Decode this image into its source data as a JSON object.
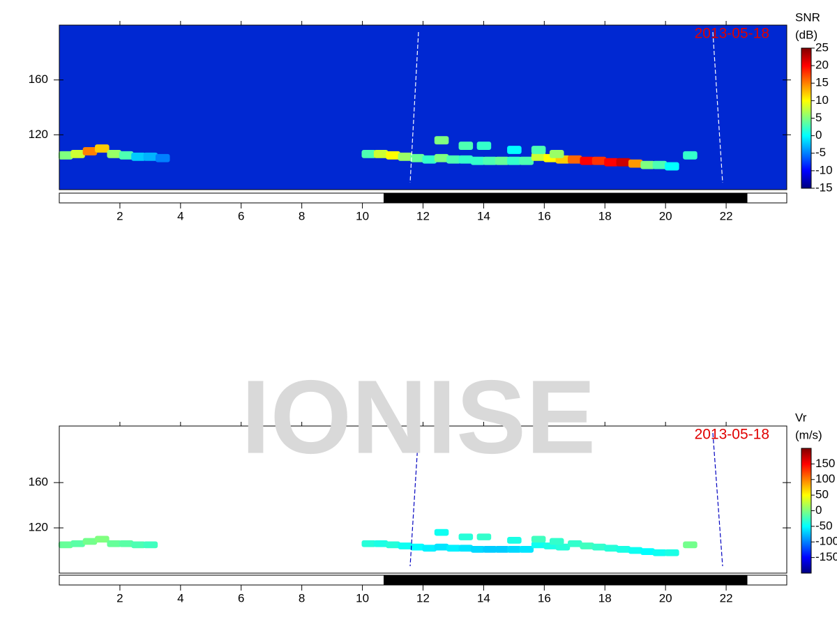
{
  "watermark": "IONISE",
  "chart_data": [
    {
      "type": "heatmap",
      "date_label": "2013-05-18",
      "colorbar_title": "SNR",
      "colorbar_unit": "(dB)",
      "xlim": [
        0,
        24
      ],
      "xticks": [
        2,
        4,
        6,
        8,
        10,
        12,
        14,
        16,
        18,
        20,
        22
      ],
      "ylim": [
        80,
        200
      ],
      "yticks": [
        120,
        160
      ],
      "clim": [
        -15,
        25
      ],
      "cticks": [
        -15,
        -10,
        -5,
        0,
        5,
        10,
        15,
        20,
        25
      ],
      "dark_hours": [
        10.7,
        22.7
      ],
      "x": [
        0.2,
        0.6,
        1.0,
        1.4,
        1.8,
        2.2,
        2.6,
        3.0,
        3.4,
        10.2,
        10.6,
        11.0,
        11.4,
        11.8,
        12.2,
        12.6,
        13.0,
        13.4,
        13.8,
        14.2,
        14.6,
        15.0,
        15.4,
        15.8,
        16.2,
        16.6,
        17.0,
        17.4,
        17.8,
        18.2,
        18.6,
        19.0,
        19.4,
        19.8,
        20.2,
        20.8,
        12.6,
        13.4,
        14.0,
        15.0,
        15.8,
        16.4
      ],
      "y": [
        105,
        106,
        108,
        110,
        106,
        105,
        104,
        104,
        103,
        106,
        106,
        105,
        104,
        103,
        102,
        103,
        102,
        102,
        101,
        101,
        101,
        101,
        101,
        104,
        103,
        102,
        102,
        101,
        101,
        100,
        100,
        99,
        98,
        98,
        97,
        105,
        116,
        112,
        112,
        109,
        109,
        106
      ],
      "values": [
        5,
        8,
        15,
        12,
        6,
        3,
        -2,
        -3,
        -5,
        3,
        8,
        10,
        6,
        4,
        2,
        5,
        3,
        2,
        2,
        3,
        4,
        2,
        3,
        8,
        10,
        12,
        16,
        20,
        18,
        20,
        22,
        14,
        5,
        3,
        0,
        2,
        5,
        3,
        2,
        0,
        3,
        6
      ]
    },
    {
      "type": "heatmap",
      "date_label": "2013-05-18",
      "colorbar_title": "Vr",
      "colorbar_unit": "(m/s)",
      "xlim": [
        0,
        24
      ],
      "xticks": [
        2,
        4,
        6,
        8,
        10,
        12,
        14,
        16,
        18,
        20,
        22
      ],
      "ylim": [
        80,
        210
      ],
      "yticks": [
        120,
        160
      ],
      "clim": [
        -200,
        200
      ],
      "cticks": [
        -150,
        -100,
        -50,
        0,
        50,
        100,
        150
      ],
      "dark_hours": [
        10.7,
        22.7
      ],
      "x": [
        0.2,
        0.6,
        1.0,
        1.4,
        1.8,
        2.2,
        2.6,
        3.0,
        10.2,
        10.6,
        11.0,
        11.4,
        11.8,
        12.2,
        12.6,
        13.0,
        13.4,
        13.8,
        14.2,
        14.6,
        15.0,
        15.4,
        15.8,
        16.2,
        16.6,
        17.0,
        17.4,
        17.8,
        18.2,
        18.6,
        19.0,
        19.4,
        19.8,
        20.2,
        20.8,
        12.6,
        13.4,
        14.0,
        15.0,
        15.8,
        16.4
      ],
      "y": [
        105,
        106,
        108,
        110,
        106,
        106,
        105,
        105,
        106,
        106,
        105,
        104,
        103,
        102,
        103,
        102,
        102,
        101,
        101,
        101,
        101,
        101,
        105,
        104,
        103,
        106,
        104,
        103,
        102,
        101,
        100,
        99,
        98,
        98,
        105,
        116,
        112,
        112,
        109,
        110,
        108
      ],
      "values": [
        -10,
        -15,
        -5,
        0,
        -10,
        -15,
        -20,
        -25,
        -35,
        -40,
        -35,
        -45,
        -50,
        -55,
        -60,
        -55,
        -60,
        -65,
        -70,
        -70,
        -65,
        -60,
        -45,
        -40,
        -35,
        -30,
        -25,
        -30,
        -35,
        -40,
        -45,
        -50,
        -45,
        -40,
        -5,
        -45,
        -35,
        -30,
        -40,
        -25,
        -30
      ]
    }
  ]
}
